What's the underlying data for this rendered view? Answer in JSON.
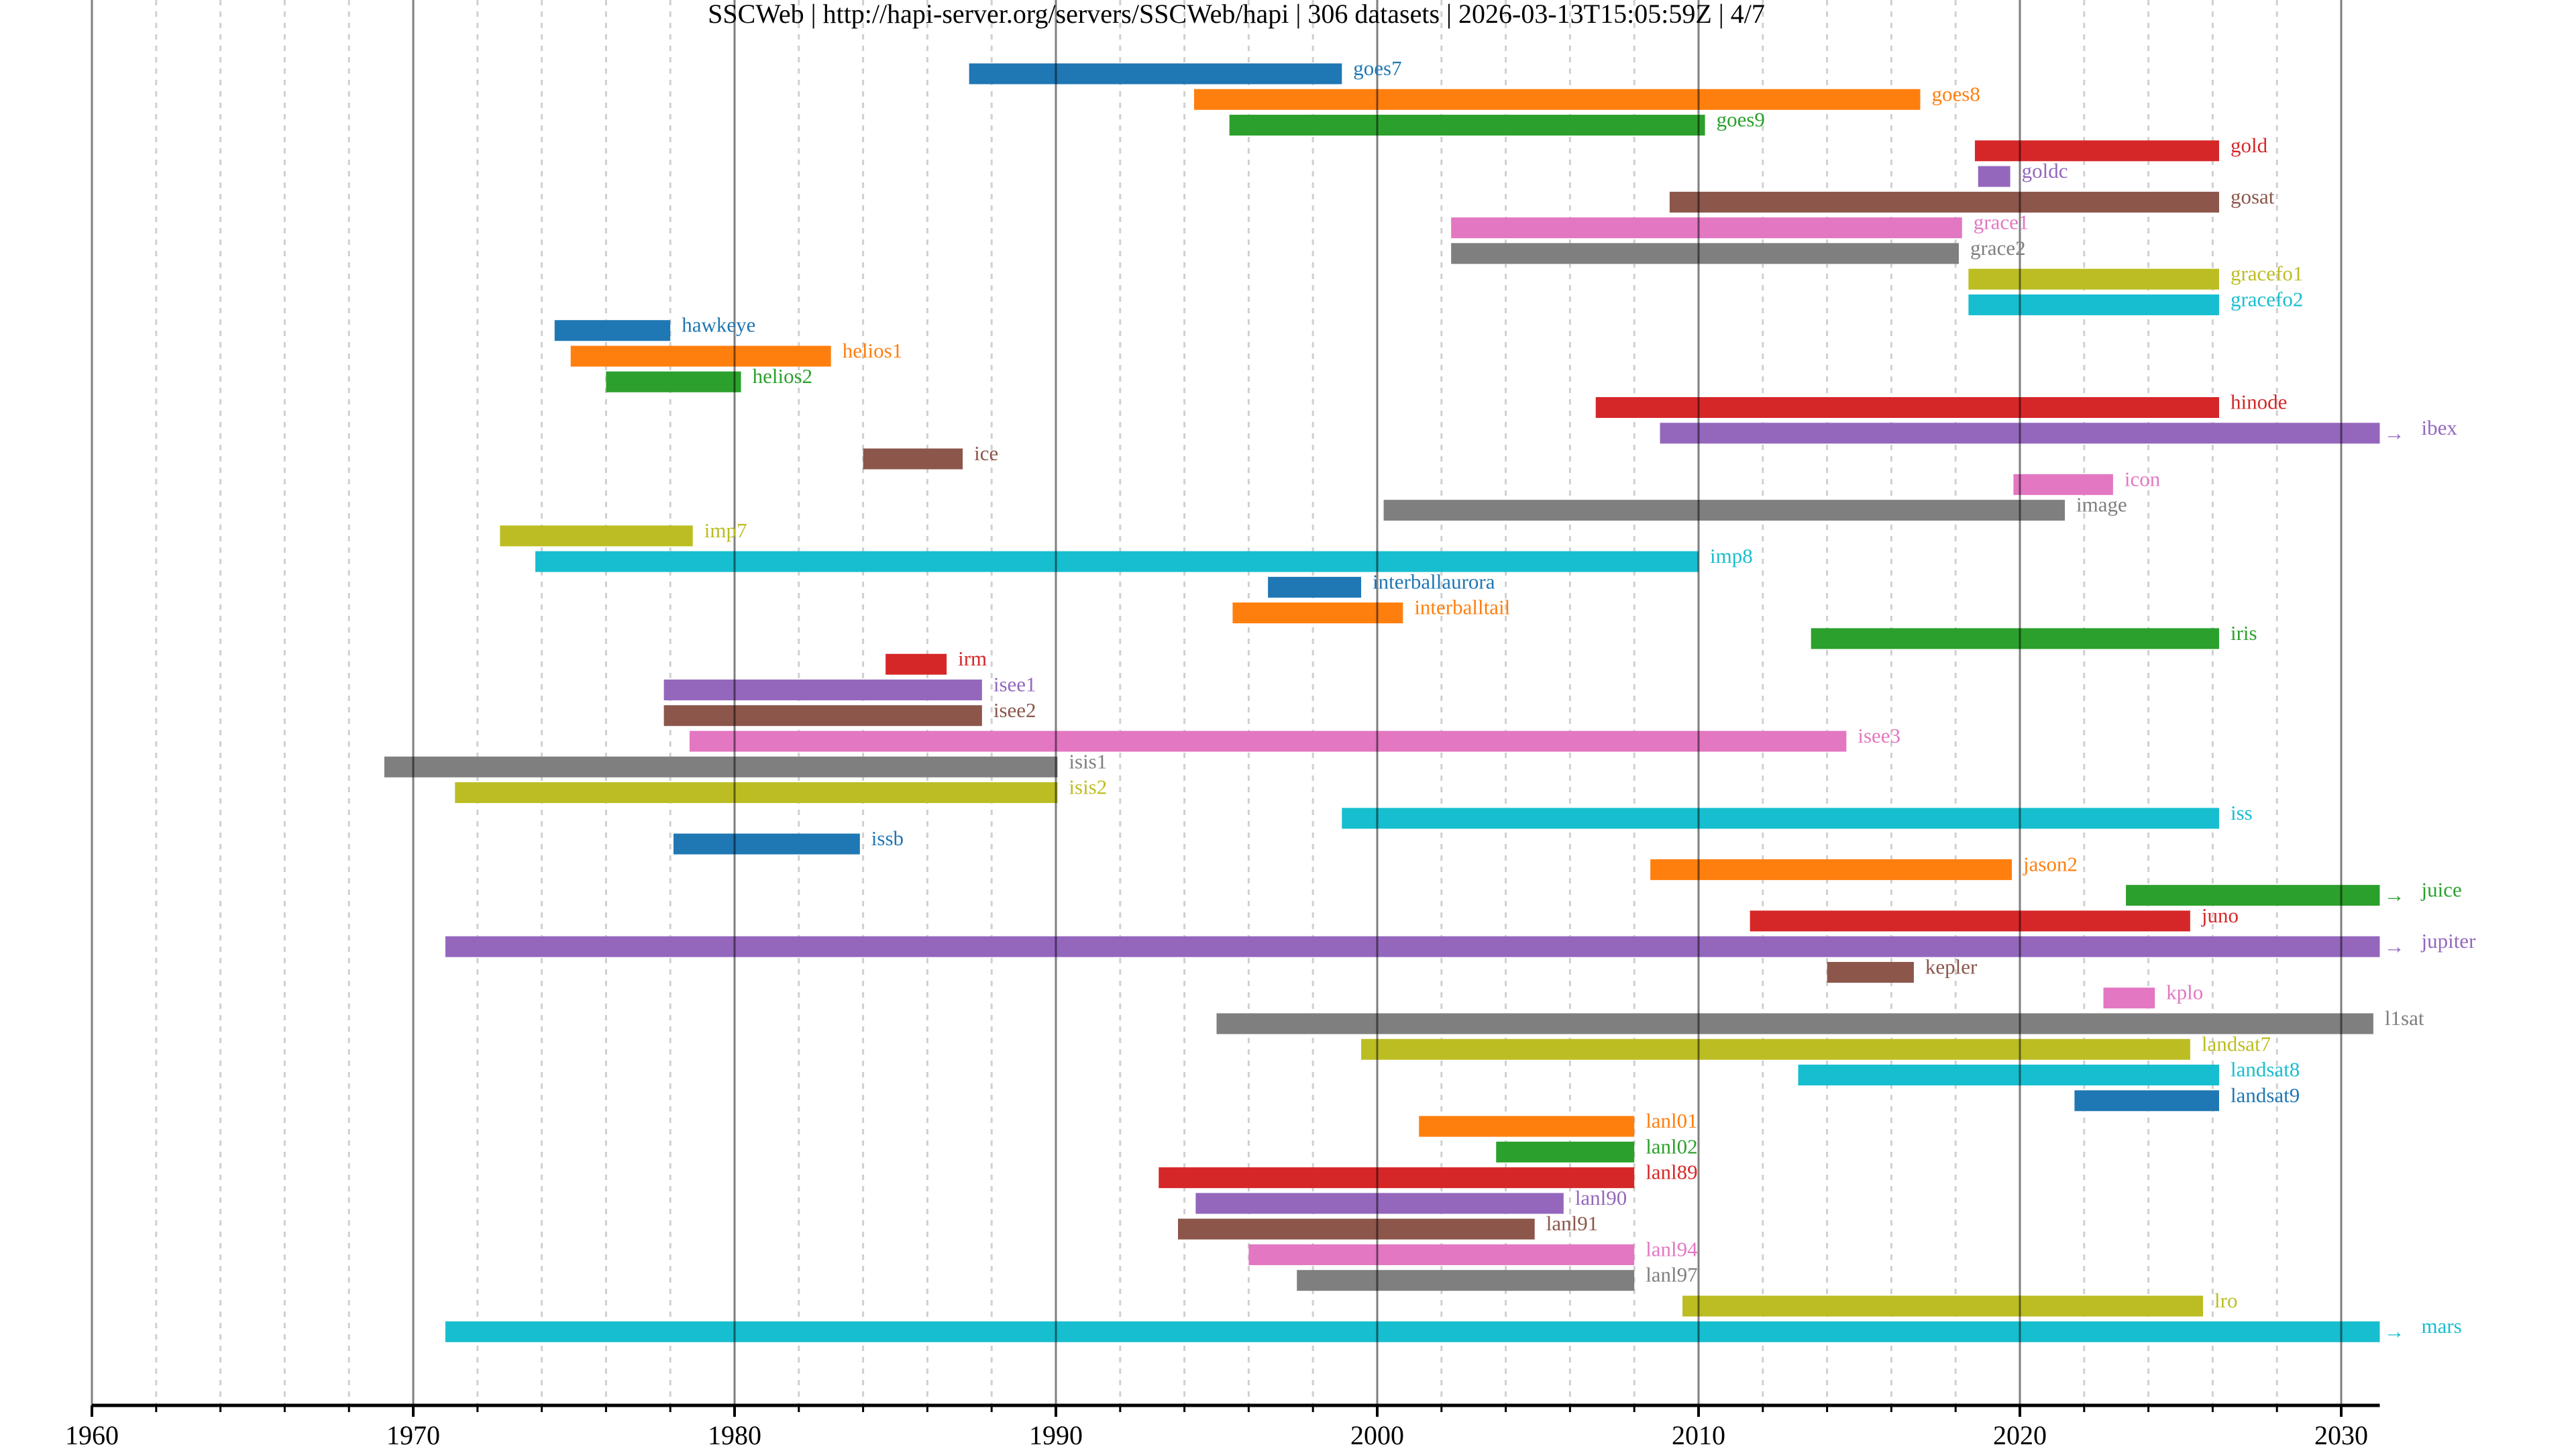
{
  "chart_data": {
    "type": "timeline",
    "title": "SSCWeb | http://hapi-server.org/servers/SSCWeb/hapi | 306 datasets | 2026-03-13T15:05:59Z | 4/7",
    "xlabel": "",
    "ylabel": "",
    "xlim": [
      1960,
      2031.2
    ],
    "x_ticks": [
      1960,
      1970,
      1980,
      1990,
      2000,
      2010,
      2020,
      2030
    ],
    "x_tick_labels": [
      "1960",
      "1970",
      "1980",
      "1990",
      "2000",
      "2010",
      "2020",
      "2030"
    ],
    "minor_tick_step": 2,
    "grid": true,
    "arrow_glyph": "→",
    "series": [
      {
        "name": "goes7",
        "start": 1987.3,
        "end": 1998.9,
        "color": "#1f77b4",
        "ongoing": false
      },
      {
        "name": "goes8",
        "start": 1994.3,
        "end": 2016.9,
        "color": "#ff7f0e",
        "ongoing": false
      },
      {
        "name": "goes9",
        "start": 1995.4,
        "end": 2010.2,
        "color": "#2ca02c",
        "ongoing": false
      },
      {
        "name": "gold",
        "start": 2018.6,
        "end": 2026.2,
        "color": "#d62728",
        "ongoing": false
      },
      {
        "name": "goldc",
        "start": 2018.7,
        "end": 2019.7,
        "color": "#9467bd",
        "ongoing": false
      },
      {
        "name": "gosat",
        "start": 2009.1,
        "end": 2026.2,
        "color": "#8c564b",
        "ongoing": false
      },
      {
        "name": "grace1",
        "start": 2002.3,
        "end": 2018.2,
        "color": "#e377c2",
        "ongoing": false
      },
      {
        "name": "grace2",
        "start": 2002.3,
        "end": 2018.1,
        "color": "#7f7f7f",
        "ongoing": false
      },
      {
        "name": "gracefo1",
        "start": 2018.4,
        "end": 2026.2,
        "color": "#bcbd22",
        "ongoing": false
      },
      {
        "name": "gracefo2",
        "start": 2018.4,
        "end": 2026.2,
        "color": "#17becf",
        "ongoing": false
      },
      {
        "name": "hawkeye",
        "start": 1974.4,
        "end": 1978.0,
        "color": "#1f77b4",
        "ongoing": false
      },
      {
        "name": "helios1",
        "start": 1974.9,
        "end": 1983.0,
        "color": "#ff7f0e",
        "ongoing": false
      },
      {
        "name": "helios2",
        "start": 1976.0,
        "end": 1980.2,
        "color": "#2ca02c",
        "ongoing": false
      },
      {
        "name": "hinode",
        "start": 2006.8,
        "end": 2026.2,
        "color": "#d62728",
        "ongoing": false
      },
      {
        "name": "ibex",
        "start": 2008.8,
        "end": 2031.2,
        "color": "#9467bd",
        "ongoing": true
      },
      {
        "name": "ice",
        "start": 1984.0,
        "end": 1987.1,
        "color": "#8c564b",
        "ongoing": false
      },
      {
        "name": "icon",
        "start": 2019.8,
        "end": 2022.9,
        "color": "#e377c2",
        "ongoing": false
      },
      {
        "name": "image",
        "start": 2000.2,
        "end": 2021.4,
        "color": "#7f7f7f",
        "ongoing": false
      },
      {
        "name": "imp7",
        "start": 1972.7,
        "end": 1978.7,
        "color": "#bcbd22",
        "ongoing": false
      },
      {
        "name": "imp8",
        "start": 1973.8,
        "end": 2010.0,
        "color": "#17becf",
        "ongoing": false
      },
      {
        "name": "interballaurora",
        "start": 1996.6,
        "end": 1999.5,
        "color": "#1f77b4",
        "ongoing": false
      },
      {
        "name": "interballtail",
        "start": 1995.5,
        "end": 2000.8,
        "color": "#ff7f0e",
        "ongoing": false
      },
      {
        "name": "iris",
        "start": 2013.5,
        "end": 2026.2,
        "color": "#2ca02c",
        "ongoing": false
      },
      {
        "name": "irm",
        "start": 1984.7,
        "end": 1986.6,
        "color": "#d62728",
        "ongoing": false
      },
      {
        "name": "isee1",
        "start": 1977.8,
        "end": 1987.7,
        "color": "#9467bd",
        "ongoing": false
      },
      {
        "name": "isee2",
        "start": 1977.8,
        "end": 1987.7,
        "color": "#8c564b",
        "ongoing": false
      },
      {
        "name": "isee3",
        "start": 1978.6,
        "end": 2014.6,
        "color": "#e377c2",
        "ongoing": false
      },
      {
        "name": "isis1",
        "start": 1969.1,
        "end": 1990.05,
        "color": "#7f7f7f",
        "ongoing": false
      },
      {
        "name": "isis2",
        "start": 1971.3,
        "end": 1990.05,
        "color": "#bcbd22",
        "ongoing": false
      },
      {
        "name": "iss",
        "start": 1998.9,
        "end": 2026.2,
        "color": "#17becf",
        "ongoing": false
      },
      {
        "name": "issb",
        "start": 1978.1,
        "end": 1983.9,
        "color": "#1f77b4",
        "ongoing": false
      },
      {
        "name": "jason2",
        "start": 2008.5,
        "end": 2019.75,
        "color": "#ff7f0e",
        "ongoing": false
      },
      {
        "name": "juice",
        "start": 2023.3,
        "end": 2031.2,
        "color": "#2ca02c",
        "ongoing": true
      },
      {
        "name": "juno",
        "start": 2011.6,
        "end": 2025.3,
        "color": "#d62728",
        "ongoing": false
      },
      {
        "name": "jupiter",
        "start": 1971.0,
        "end": 2031.2,
        "color": "#9467bd",
        "ongoing": true
      },
      {
        "name": "kepler",
        "start": 2014.0,
        "end": 2016.7,
        "color": "#8c564b",
        "ongoing": false
      },
      {
        "name": "kplo",
        "start": 2022.6,
        "end": 2024.2,
        "color": "#e377c2",
        "ongoing": false
      },
      {
        "name": "l1sat",
        "start": 1995.0,
        "end": 2031.0,
        "color": "#7f7f7f",
        "ongoing": false
      },
      {
        "name": "landsat7",
        "start": 1999.5,
        "end": 2025.3,
        "color": "#bcbd22",
        "ongoing": false
      },
      {
        "name": "landsat8",
        "start": 2013.1,
        "end": 2026.2,
        "color": "#17becf",
        "ongoing": false
      },
      {
        "name": "landsat9",
        "start": 2021.7,
        "end": 2026.2,
        "color": "#1f77b4",
        "ongoing": false
      },
      {
        "name": "lanl01",
        "start": 2001.3,
        "end": 2008.0,
        "color": "#ff7f0e",
        "ongoing": false
      },
      {
        "name": "lanl02",
        "start": 2003.7,
        "end": 2008.0,
        "color": "#2ca02c",
        "ongoing": false
      },
      {
        "name": "lanl89",
        "start": 1993.2,
        "end": 2008.0,
        "color": "#d62728",
        "ongoing": false
      },
      {
        "name": "lanl90",
        "start": 1994.35,
        "end": 2005.8,
        "color": "#9467bd",
        "ongoing": false
      },
      {
        "name": "lanl91",
        "start": 1993.8,
        "end": 2004.9,
        "color": "#8c564b",
        "ongoing": false
      },
      {
        "name": "lanl94",
        "start": 1996.0,
        "end": 2008.0,
        "color": "#e377c2",
        "ongoing": false
      },
      {
        "name": "lanl97",
        "start": 1997.5,
        "end": 2008.0,
        "color": "#7f7f7f",
        "ongoing": false
      },
      {
        "name": "lro",
        "start": 2009.5,
        "end": 2025.7,
        "color": "#bcbd22",
        "ongoing": false
      },
      {
        "name": "mars",
        "start": 1971.0,
        "end": 2031.2,
        "color": "#17becf",
        "ongoing": true
      }
    ]
  }
}
